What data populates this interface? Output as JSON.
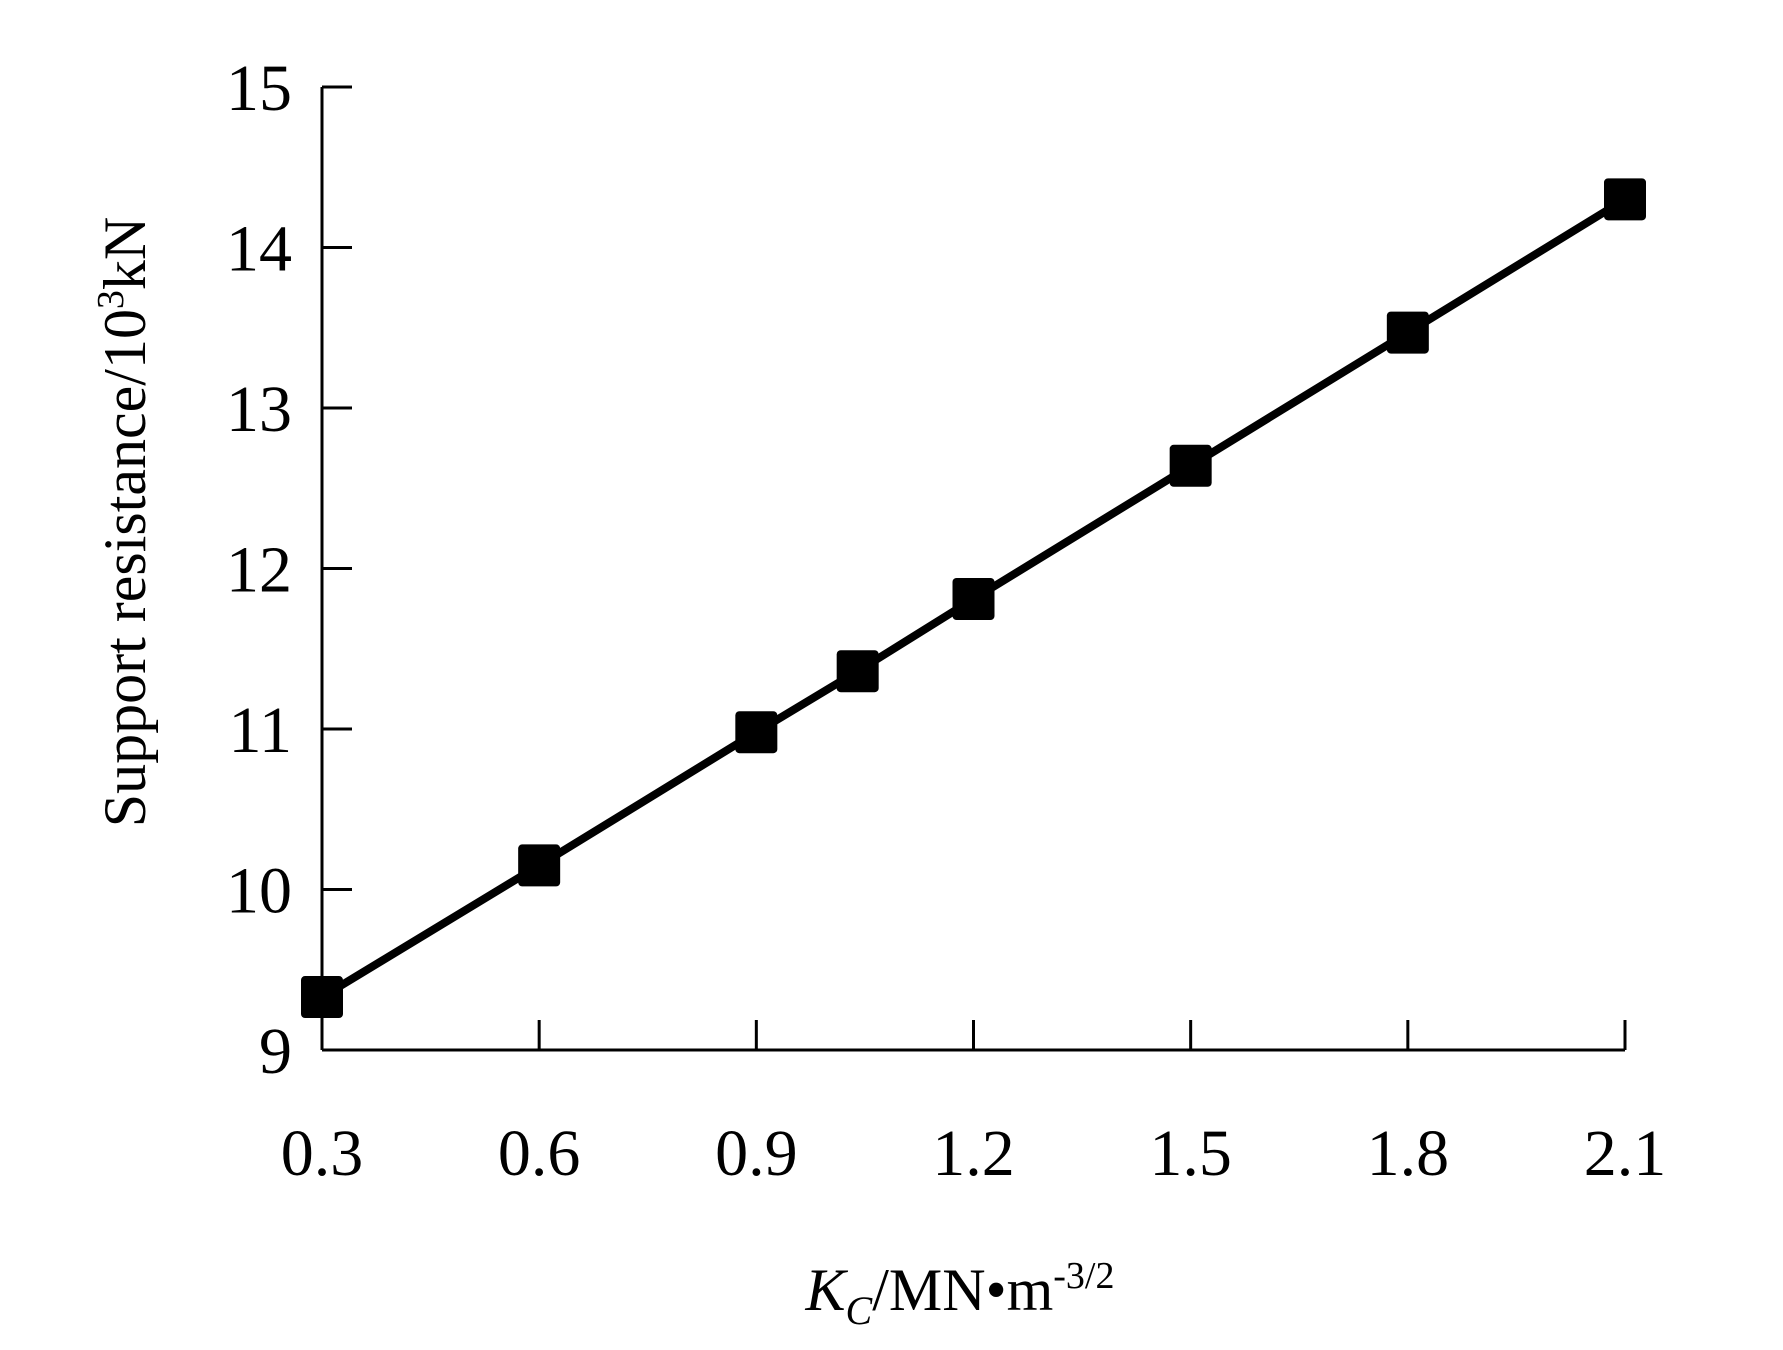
{
  "chart_data": {
    "type": "line",
    "title": "",
    "xlabel": {
      "main": "K",
      "subscript": "C",
      "unit": "/MN•m",
      "superscript": "-3/2"
    },
    "ylabel": {
      "main": "Support resistance/10",
      "superscript": "3",
      "unit": "kN"
    },
    "xlim": [
      0.3,
      2.1
    ],
    "ylim": [
      9,
      15
    ],
    "xticks": [
      0.3,
      0.6,
      0.9,
      1.2,
      1.5,
      1.8,
      2.1
    ],
    "xtick_labels": [
      "0.3",
      "0.6",
      "0.9",
      "1.2",
      "1.5",
      "1.8",
      "2.1"
    ],
    "yticks": [
      9,
      10,
      11,
      12,
      13,
      14,
      15
    ],
    "ytick_labels": [
      "9",
      "10",
      "11",
      "12",
      "13",
      "14",
      "15"
    ],
    "grid": false,
    "series": [
      {
        "x": [
          0.3,
          0.6,
          0.9,
          1.04,
          1.2,
          1.5,
          1.8,
          2.1
        ],
        "y": [
          9.33,
          10.15,
          10.98,
          11.36,
          11.81,
          12.64,
          13.47,
          14.3
        ],
        "marker": "square",
        "color": "#000000"
      }
    ]
  }
}
